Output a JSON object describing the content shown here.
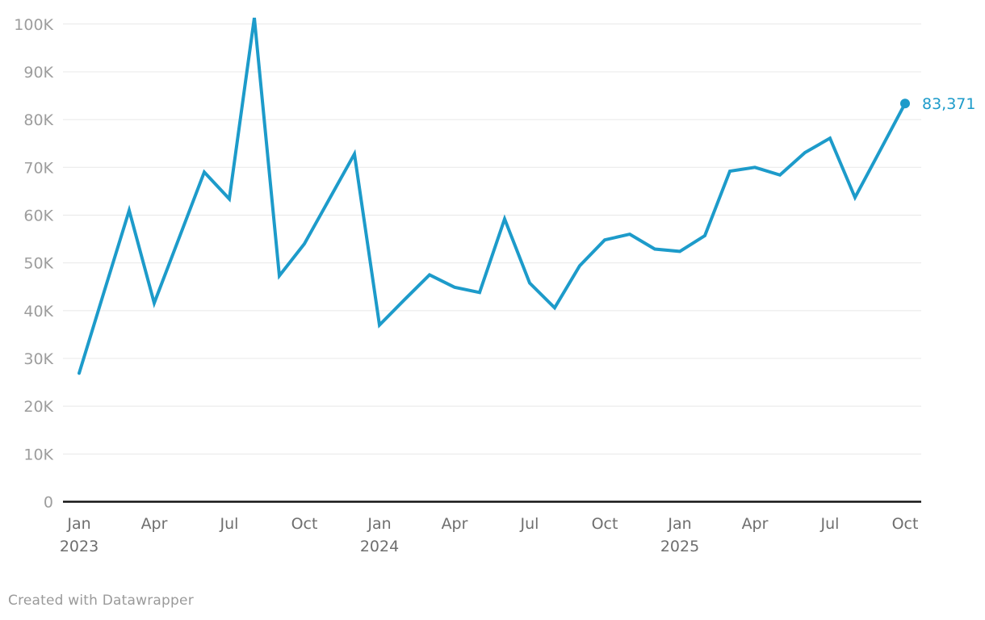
{
  "chart_data": {
    "type": "line",
    "title": "",
    "x": [
      "Jan 2023",
      "Feb 2023",
      "Mar 2023",
      "Apr 2023",
      "May 2023",
      "Jun 2023",
      "Jul 2023",
      "Aug 2023",
      "Sep 2023",
      "Oct 2023",
      "Nov 2023",
      "Dec 2023",
      "Jan 2024",
      "Feb 2024",
      "Mar 2024",
      "Apr 2024",
      "May 2024",
      "Jun 2024",
      "Jul 2024",
      "Aug 2024",
      "Sep 2024",
      "Oct 2024",
      "Nov 2024",
      "Dec 2024",
      "Jan 2025",
      "Feb 2025",
      "Mar 2025",
      "Apr 2025",
      "May 2025",
      "Jun 2025",
      "Jul 2025",
      "Aug 2025",
      "Sep 2025",
      "Oct 2025"
    ],
    "values": [
      26900,
      44000,
      61000,
      41600,
      55300,
      69000,
      63400,
      101300,
      47300,
      54000,
      63400,
      72800,
      37000,
      42300,
      47500,
      44900,
      43800,
      59200,
      45800,
      40600,
      49400,
      54800,
      56000,
      52900,
      52400,
      55700,
      69200,
      70000,
      68400,
      73100,
      76100,
      63700,
      73500,
      83371
    ],
    "ylim": [
      0,
      100000
    ],
    "y_ticks": [
      {
        "value": 0,
        "label": "0"
      },
      {
        "value": 10000,
        "label": "10K"
      },
      {
        "value": 20000,
        "label": "20K"
      },
      {
        "value": 30000,
        "label": "30K"
      },
      {
        "value": 40000,
        "label": "40K"
      },
      {
        "value": 50000,
        "label": "50K"
      },
      {
        "value": 60000,
        "label": "60K"
      },
      {
        "value": 70000,
        "label": "70K"
      },
      {
        "value": 80000,
        "label": "80K"
      },
      {
        "value": 90000,
        "label": "90K"
      },
      {
        "value": 100000,
        "label": "100K"
      }
    ],
    "x_ticks": [
      {
        "index": 0,
        "label": "Jan",
        "year": "2023"
      },
      {
        "index": 3,
        "label": "Apr"
      },
      {
        "index": 6,
        "label": "Jul"
      },
      {
        "index": 9,
        "label": "Oct"
      },
      {
        "index": 12,
        "label": "Jan",
        "year": "2024"
      },
      {
        "index": 15,
        "label": "Apr"
      },
      {
        "index": 18,
        "label": "Jul"
      },
      {
        "index": 21,
        "label": "Oct"
      },
      {
        "index": 24,
        "label": "Jan",
        "year": "2025"
      },
      {
        "index": 27,
        "label": "Apr"
      },
      {
        "index": 30,
        "label": "Jul"
      },
      {
        "index": 33,
        "label": "Oct"
      }
    ],
    "end_label": "83,371",
    "grid": true,
    "legend": "none",
    "colors": {
      "line": "#1d9bca",
      "grid": "#e8e8e8",
      "baseline": "#141414",
      "y_label": "#9d9d9d",
      "x_label": "#6e6e6e",
      "end_label": "#1d9bca"
    }
  },
  "footer": {
    "credit": "Created with Datawrapper"
  }
}
